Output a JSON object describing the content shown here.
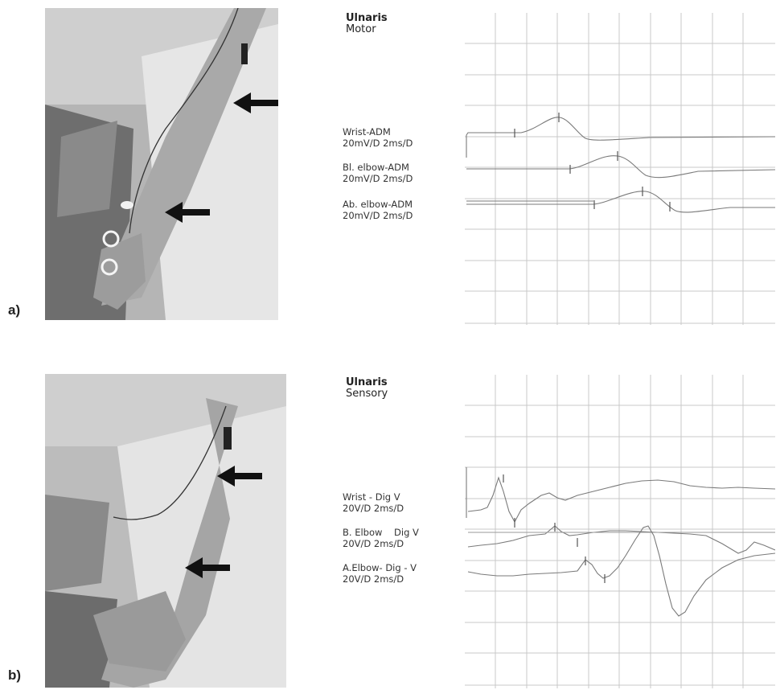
{
  "panels": [
    {
      "letter": "a)",
      "title": "Ulnaris",
      "subtitle": "Motor",
      "traces": [
        {
          "name": "Wrist-ADM",
          "settings": "20mV/D 2ms/D"
        },
        {
          "name": "Bl. elbow-ADM",
          "settings": "20mV/D 2ms/D"
        },
        {
          "name": "Ab. elbow-ADM",
          "settings": "20mV/D 2ms/D"
        }
      ]
    },
    {
      "letter": "b)",
      "title": "Ulnaris",
      "subtitle": "Sensory",
      "traces": [
        {
          "name": "Wrist - Dig V",
          "settings": "20V/D 2ms/D"
        },
        {
          "name": "B. Elbow    Dig V",
          "settings": "20V/D 2ms/D"
        },
        {
          "name": "A.Elbow- Dig - V",
          "settings": "20V/D 2ms/D"
        }
      ]
    }
  ],
  "colors": {
    "grid": "#c8c8c8",
    "trace": "#7a7a7a",
    "arrow": "#111111"
  }
}
